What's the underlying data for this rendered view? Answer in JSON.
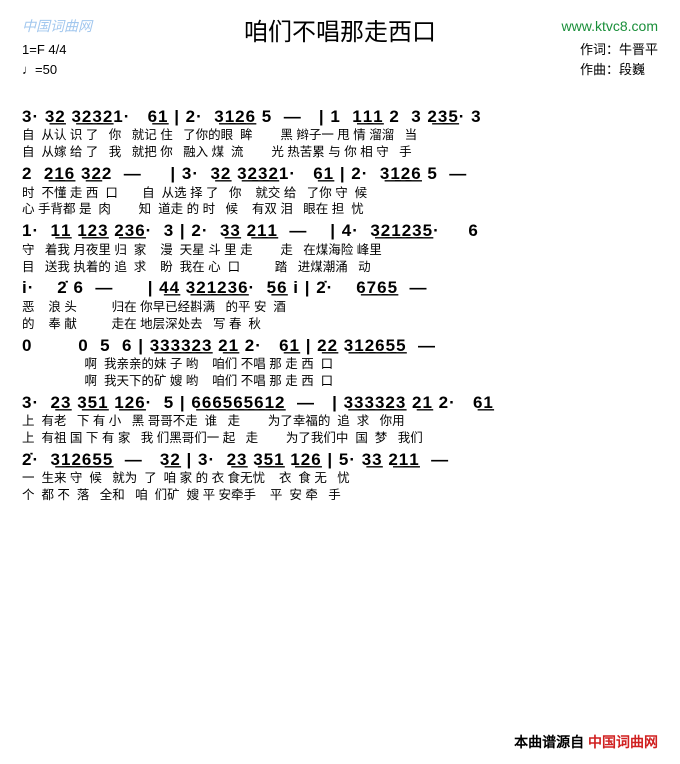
{
  "watermark": "中国词曲网",
  "title": "咱们不唱那走西口",
  "url": "www.ktvc8.com",
  "meta_left_1": "1=F 4/4",
  "meta_left_2": "♩=50",
  "credit_1": "作词：牛晋平",
  "credit_2": "作曲：段巍",
  "lines": [
    {
      "n": "3· 3͟2 3͟2͟3͟21·   6͟1 | 2·  3͟1͟2͟6 5  —   | 1  1͟1͟1 2  3 2͟3͟5· 3",
      "l1": "自  从认 识 了   你   就记 住   了你的眼  眸        黑 辫子一 甩 情 溜溜   当",
      "l2": "自  从嫁 给 了   我   就把 你   融入 煤  流        光 热苦累 与 你 相 守   手"
    },
    {
      "n": "2  2͟1͟6 3͟22  —     | 3·  3͟2 3͟2͟3͟21·   6͟1 | 2·  3͟1͟2͟6 5  —",
      "l1": "时  不懂 走 西  口       自  从选 择 了   你    就交 给   了你 守  候",
      "l2": "心 手背都 是  肉        知  道走 的 时   候    有双 泪   眼在 担  忧"
    },
    {
      "n": "1·  1͟1 1͟2͟3 2͟3͟6·  3 | 2·  3͟3 2͟1͟1  —    | 4·  3͟2͟1͟2͟3͟5·     6",
      "l1": "守   着我 月夜里 归  家    漫  天星 斗 里 走        走   在煤海险 峰里",
      "l2": "目   送我 执着的 追  求    盼  我在 心  口          踏   进煤潮涌   动"
    },
    {
      "n": "i·    2̇ 6  —      | 4͟4 3͟2͟1͟2͟3͟6·  5͟6 i | 2̇·    6͟7͟6͟5  —",
      "l1": "恶    浪 头          归在 你早已经斟满   的平 安  酒",
      "l2": "的    奉 献          走在 地层深处去   写 春  秋"
    },
    {
      "n": "0        0  5  6 | 3͟3͟3͟3͟2͟3 2͟1 2·   6͟1 | 2͟2 3͟1͟2͟6͟5͟5  —",
      "l1": "                  啊  我亲亲的妹 子 哟    咱们 不唱 那 走 西  口",
      "l2": "                  啊  我天下的矿 嫂 哟    咱们 不唱 那 走 西  口"
    },
    {
      "n": "3·  2͟3 3͟5͟1 1͟2͟6·  5 | 6͟6͟6͟5͟6͟5͟6͟1͟2  —   | 3͟3͟3͟3͟2͟3 2͟1 2·   6͟1",
      "l1": "上  有老   下 有 小   黑 哥哥不走  谁   走        为了幸福的  追  求   你用",
      "l2": "上  有祖 国 下 有 家   我 们黑哥们一 起   走        为了我们中  国  梦   我们"
    },
    {
      "n": "2̇·  3͟1͟2͟6͟5͟5  —   3͟2 | 3·  2͟3 3͟5͟1 1͟2͟6 | 5· 3͟3 2͟1͟1  —",
      "l1": "一  生来 守  候   就为  了  咱 家 的 衣 食无忧    衣  食 无   忧",
      "l2": "个  都 不  落   全和   咱  们矿  嫂 平 安牵手    平  安 牵   手"
    }
  ],
  "footer_label": "本曲谱源自",
  "footer_source": "中国词曲网"
}
